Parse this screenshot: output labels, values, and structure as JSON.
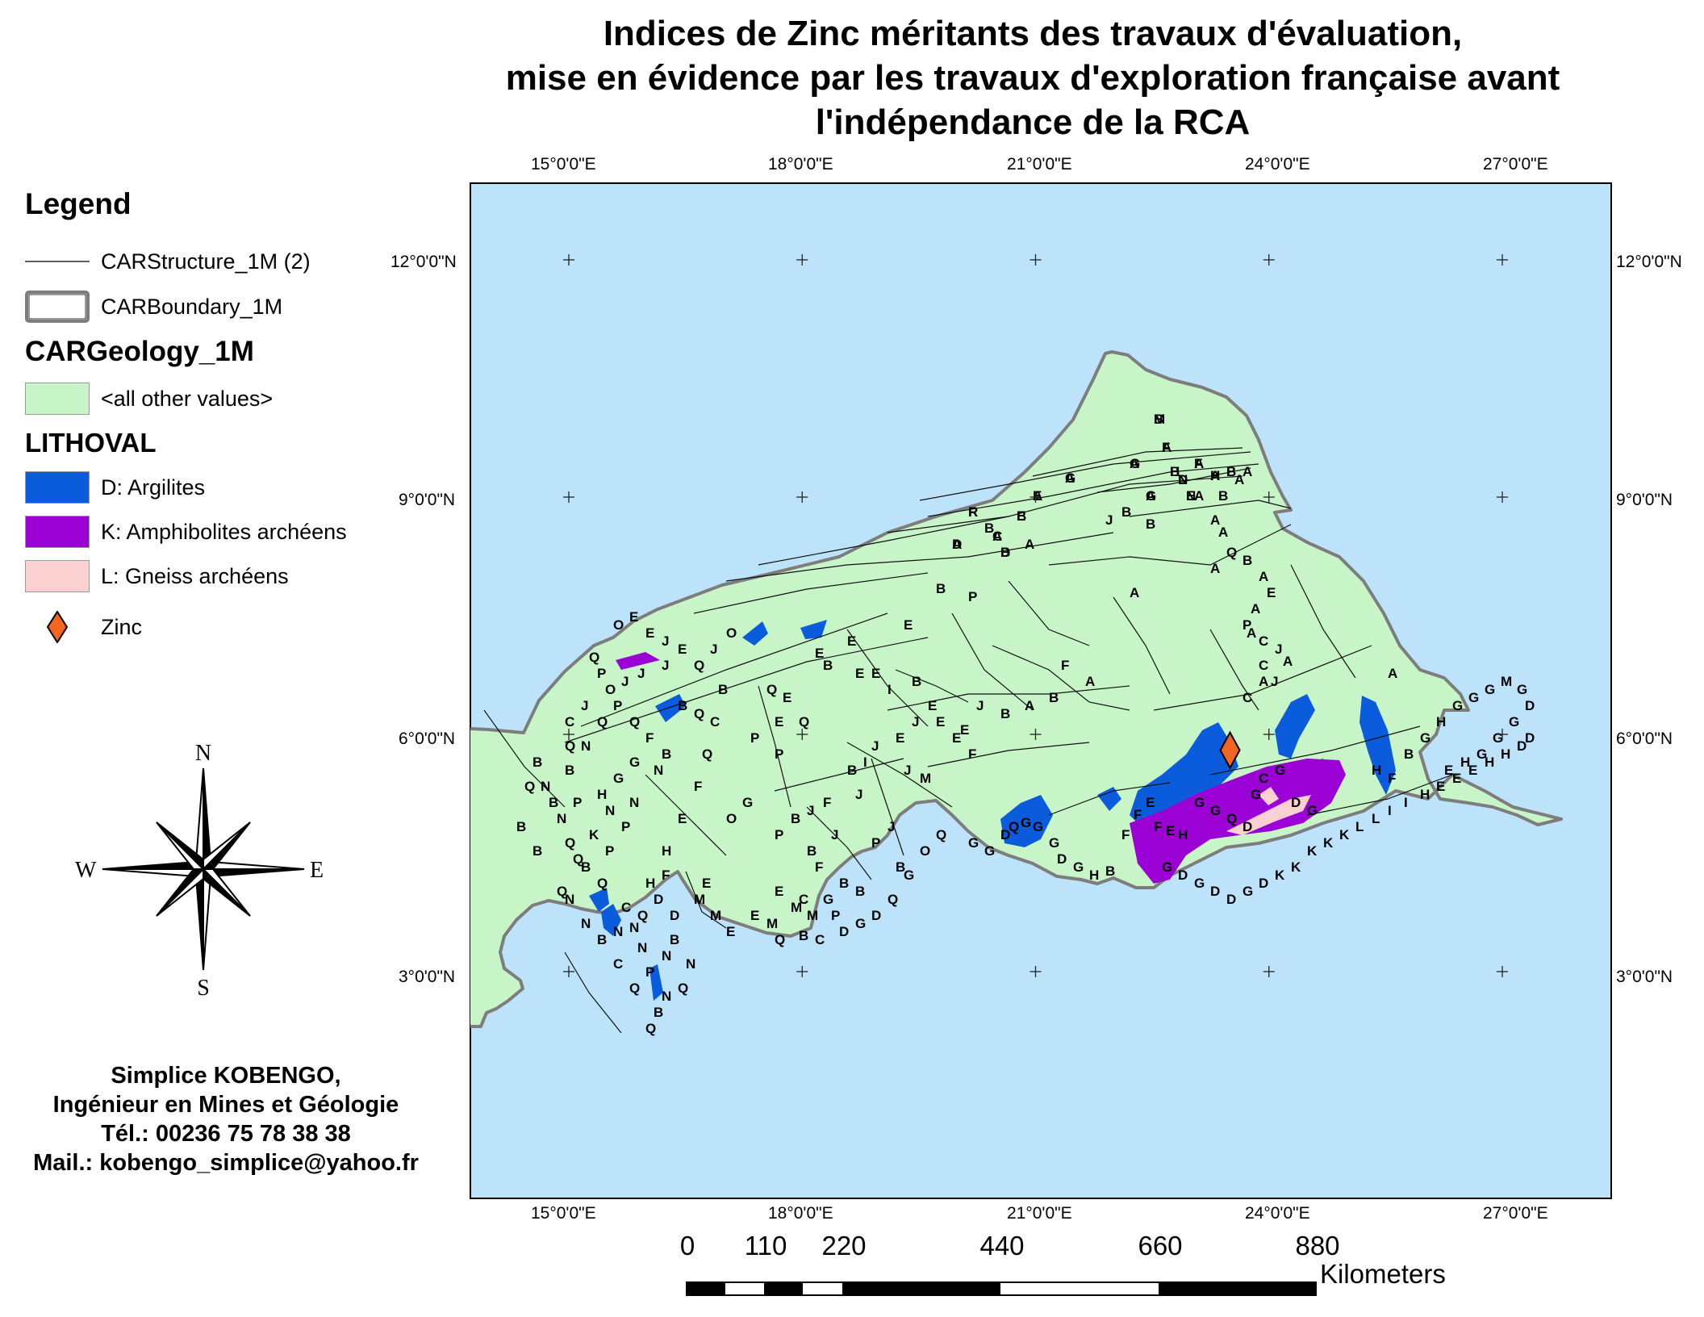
{
  "title": {
    "line1": "Indices de Zinc méritants des travaux d'évaluation,",
    "line2": "mise en évidence par les travaux d'exploration française avant",
    "line3": "l'indépendance de la RCA"
  },
  "legend": {
    "heading": "Legend",
    "structure_label": "CARStructure_1M (2)",
    "boundary_label": "CARBoundary_1M",
    "geology_heading": "CARGeology_1M",
    "other_values_label": "<all other values>",
    "lithoval_heading": "LITHOVAL",
    "argilites_label": "D: Argilites",
    "amphibolites_label": "K: Amphibolites archéens",
    "gneiss_label": "L: Gneiss archéens",
    "zinc_label": "Zinc"
  },
  "colors": {
    "water": "#bde3fa",
    "land": "#c8f5c8",
    "argilites": "#0a5cdc",
    "amphibolites": "#9b00d4",
    "gneiss": "#fad0d0",
    "zinc": "#f26522",
    "boundary": "#7d7d7d"
  },
  "graticule": {
    "longitudes": [
      "15°0'0\"E",
      "18°0'0\"E",
      "21°0'0\"E",
      "24°0'0\"E",
      "27°0'0\"E"
    ],
    "latitudes": [
      "12°0'0\"N",
      "9°0'0\"N",
      "6°0'0\"N",
      "3°0'0\"N"
    ]
  },
  "compass": {
    "north": "N",
    "south": "S",
    "east": "E",
    "west": "W"
  },
  "credit": {
    "name": "Simplice KOBENGO,",
    "role": "Ingénieur en Mines et Géologie",
    "phone": "Tél.: 00236 75 78 38 38",
    "mail": "Mail.: kobengo_simplice@yahoo.fr"
  },
  "scale_bar": {
    "labels": [
      "0",
      "110",
      "220",
      "440",
      "660",
      "880"
    ],
    "unit": "Kilometers"
  },
  "zinc_indices": [
    {
      "lon": 23.5,
      "lat": 5.8
    }
  ],
  "geology_letters": [
    "B",
    "A",
    "A",
    "B",
    "A",
    "A",
    "B",
    "N",
    "N",
    "A",
    "A",
    "A",
    "R",
    "B",
    "A",
    "B",
    "A",
    "B",
    "A",
    "B",
    "B",
    "J",
    "A",
    "B",
    "A",
    "A",
    "A",
    "A",
    "Q",
    "B",
    "A",
    "A",
    "E",
    "A",
    "A",
    "C",
    "J",
    "A",
    "B",
    "P",
    "P",
    "C",
    "J",
    "A",
    "A",
    "A",
    "C",
    "A",
    "F",
    "B",
    "A",
    "B",
    "J",
    "E",
    "E",
    "E",
    "E",
    "B",
    "E",
    "E",
    "I",
    "B",
    "E",
    "E",
    "J",
    "E",
    "J",
    "I",
    "J",
    "M",
    "E",
    "F",
    "B",
    "J",
    "F",
    "J",
    "B",
    "P",
    "J",
    "B",
    "F",
    "B",
    "B",
    "B",
    "P",
    "J",
    "E",
    "M",
    "M",
    "M",
    "E",
    "E",
    "M",
    "M",
    "E",
    "F",
    "H",
    "H",
    "E",
    "F",
    "G",
    "O",
    "Q",
    "C",
    "Q",
    "B",
    "B",
    "Q",
    "E",
    "E",
    "P",
    "P",
    "Q",
    "O",
    "J",
    "Q",
    "J",
    "J",
    "J",
    "O",
    "O",
    "E",
    "E",
    "J",
    "E",
    "Q",
    "P",
    "P",
    "J",
    "C",
    "Q",
    "Q",
    "F",
    "B",
    "G",
    "G",
    "H",
    "P",
    "B",
    "N",
    "N",
    "P",
    "K",
    "Q",
    "Q",
    "P",
    "N",
    "N",
    "B",
    "N",
    "B",
    "Q",
    "N",
    "B",
    "Q",
    "B",
    "N",
    "N",
    "B",
    "N",
    "N",
    "N",
    "P",
    "N",
    "B",
    "N",
    "B",
    "Q",
    "Q",
    "C",
    "Q",
    "B",
    "Q",
    "C",
    "Q",
    "D",
    "D",
    "N",
    "Q",
    "Q",
    "B",
    "C",
    "C",
    "G",
    "P",
    "D",
    "G",
    "D",
    "Q",
    "G",
    "O",
    "Q",
    "G",
    "G",
    "D",
    "Q",
    "G",
    "G",
    "G",
    "D",
    "G",
    "H",
    "B",
    "F",
    "F",
    "E",
    "F",
    "E",
    "H",
    "G",
    "G",
    "Q",
    "D",
    "G",
    "C",
    "G",
    "D",
    "G",
    "G",
    "D",
    "G",
    "D",
    "D",
    "G",
    "D",
    "K",
    "K",
    "K",
    "K",
    "K",
    "L",
    "L",
    "I",
    "I",
    "H",
    "E",
    "E",
    "E",
    "H",
    "H",
    "D",
    "D",
    "H",
    "F",
    "B",
    "G",
    "H",
    "G",
    "G",
    "G",
    "M",
    "G",
    "D",
    "G",
    "G",
    "G",
    "H",
    "E",
    "M",
    "F",
    "G",
    "H",
    "F",
    "H",
    "I",
    "D",
    "E",
    "G",
    "G",
    "E",
    "F",
    "E",
    "C",
    "D",
    "D"
  ]
}
